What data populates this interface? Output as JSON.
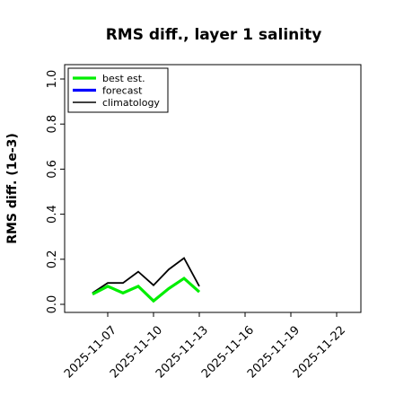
{
  "chart_data": {
    "type": "line",
    "title": "RMS diff., layer 1 salinity",
    "xlabel": "",
    "ylabel": "RMS diff. (1e-3)",
    "ylim": [
      0.0,
      1.0
    ],
    "yticks": [
      "0.0",
      "0.2",
      "0.4",
      "0.6",
      "0.8",
      "1.0"
    ],
    "xticks": [
      "2025-11-07",
      "2025-11-10",
      "2025-11-13",
      "2025-11-16",
      "2025-11-19",
      "2025-11-22"
    ],
    "highlighted_tick": "2025-11-13",
    "highlight_color": "#228B22",
    "legend_position": "top-left",
    "series": [
      {
        "name": "best est.",
        "color": "#00ee00",
        "x": [
          "2025-11-06",
          "2025-11-07",
          "2025-11-08",
          "2025-11-09",
          "2025-11-10",
          "2025-11-11",
          "2025-11-12",
          "2025-11-13"
        ],
        "values": [
          0.045,
          0.08,
          0.05,
          0.08,
          0.015,
          0.07,
          0.115,
          0.055
        ]
      },
      {
        "name": "forecast",
        "color": "#0000ff",
        "x": [],
        "values": []
      },
      {
        "name": "climatology",
        "color": "#000000",
        "x": [
          "2025-11-06",
          "2025-11-07",
          "2025-11-08",
          "2025-11-09",
          "2025-11-10",
          "2025-11-11",
          "2025-11-12",
          "2025-11-13"
        ],
        "values": [
          0.05,
          0.095,
          0.095,
          0.145,
          0.085,
          0.155,
          0.205,
          0.08
        ]
      }
    ]
  }
}
